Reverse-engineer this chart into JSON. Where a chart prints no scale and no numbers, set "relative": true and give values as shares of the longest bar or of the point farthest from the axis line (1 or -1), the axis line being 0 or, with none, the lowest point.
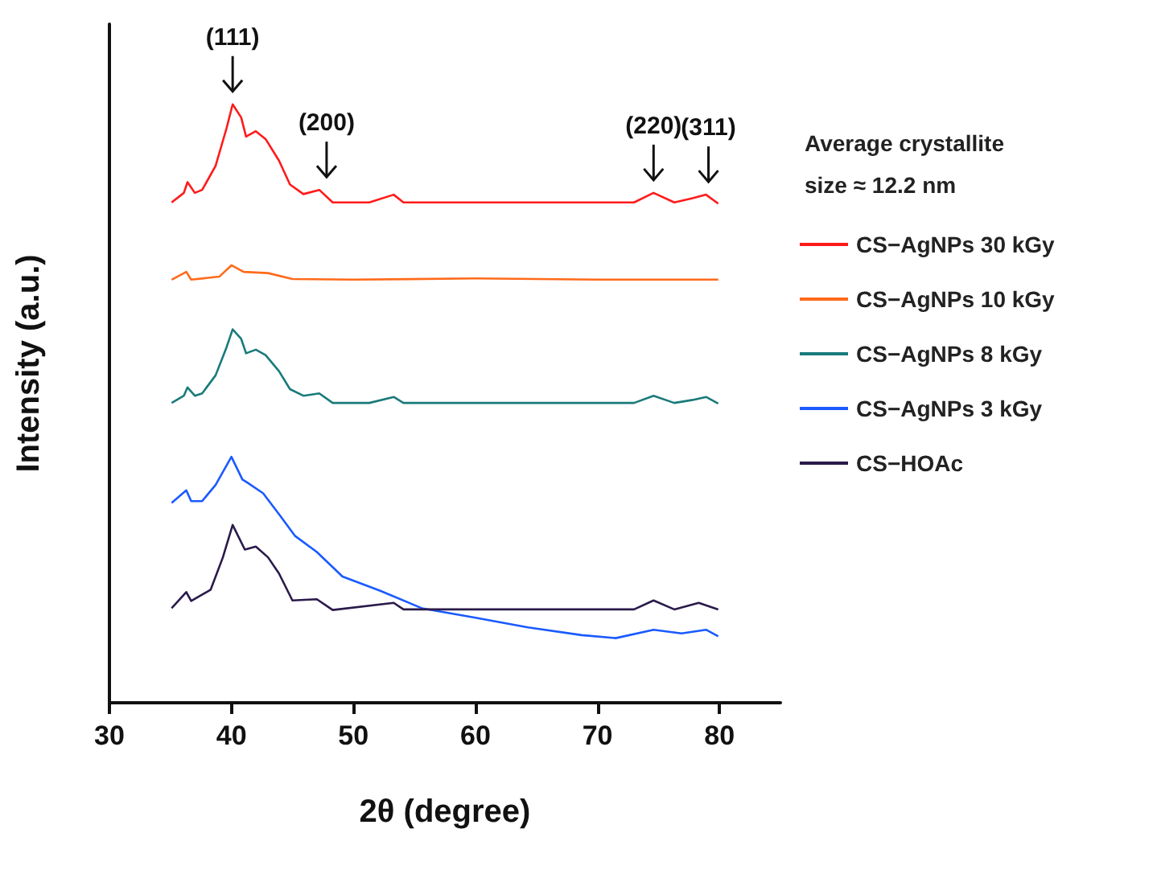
{
  "chart_data": {
    "type": "line",
    "relative": true,
    "xlabel": "2θ (degree)",
    "ylabel": "Intensity (a.u.)",
    "xlim": [
      30,
      85
    ],
    "xticks": [
      30,
      40,
      50,
      60,
      70,
      80
    ],
    "grid": false,
    "legend": "right",
    "marker": "none",
    "line_style": "solid",
    "annotations": [
      {
        "text": "(111)",
        "x": 40.1,
        "y": 1.0
      },
      {
        "text": "(200)",
        "x": 47.8,
        "y": 0.857
      },
      {
        "text": "(220)",
        "x": 74.6,
        "y": 0.852
      },
      {
        "text": "(311)",
        "x": 79.1,
        "y": 0.849
      },
      "Average crystallite size ≈ 12.2 nm"
    ],
    "series": [
      {
        "name": "CS−AgNPs 30 kGy",
        "color": "#ff1a1a",
        "x": [
          35.1,
          36.1,
          36.4,
          37.0,
          37.6,
          38.7,
          39.6,
          40.1,
          40.8,
          41.2,
          42.0,
          42.8,
          43.9,
          44.8,
          45.9,
          47.2,
          48.3,
          51.3,
          53.3,
          54.1,
          73.0,
          74.6,
          76.3,
          77.8,
          78.9,
          79.9
        ],
        "values": [
          0.836,
          0.852,
          0.87,
          0.852,
          0.857,
          0.897,
          0.96,
          1.0,
          0.978,
          0.946,
          0.955,
          0.942,
          0.906,
          0.866,
          0.85,
          0.857,
          0.836,
          0.836,
          0.849,
          0.836,
          0.836,
          0.852,
          0.836,
          0.843,
          0.849,
          0.834
        ]
      },
      {
        "name": "CS−AgNPs 10 kGy",
        "color": "#ff6a1a",
        "x": [
          35.1,
          36.3,
          36.7,
          39.0,
          40.0,
          41.0,
          43.0,
          45.0,
          50.0,
          60.0,
          70.0,
          79.9
        ],
        "values": [
          0.707,
          0.72,
          0.707,
          0.712,
          0.731,
          0.72,
          0.718,
          0.708,
          0.707,
          0.709,
          0.707,
          0.707
        ]
      },
      {
        "name": "CS−AgNPs 8 kGy",
        "color": "#1a7a7a",
        "x": [
          35.1,
          36.1,
          36.4,
          37.0,
          37.6,
          38.7,
          39.6,
          40.1,
          40.8,
          41.2,
          42.0,
          42.8,
          43.9,
          44.8,
          45.9,
          47.2,
          48.3,
          51.3,
          53.3,
          54.1,
          73.0,
          74.6,
          76.3,
          77.8,
          78.9,
          79.9
        ],
        "values": [
          0.501,
          0.513,
          0.527,
          0.513,
          0.517,
          0.547,
          0.594,
          0.624,
          0.608,
          0.584,
          0.59,
          0.581,
          0.554,
          0.524,
          0.513,
          0.517,
          0.501,
          0.501,
          0.511,
          0.501,
          0.501,
          0.513,
          0.501,
          0.506,
          0.511,
          0.5
        ]
      },
      {
        "name": "CS−AgNPs 3 kGy",
        "color": "#1a5aff",
        "x": [
          35.1,
          36.3,
          36.7,
          37.6,
          38.7,
          40.0,
          40.9,
          41.3,
          42.6,
          43.9,
          45.2,
          47.0,
          49.1,
          52.2,
          55.6,
          60.0,
          64.3,
          68.7,
          71.5,
          74.6,
          76.9,
          78.9,
          79.9
        ],
        "values": [
          0.334,
          0.355,
          0.337,
          0.337,
          0.364,
          0.411,
          0.373,
          0.368,
          0.35,
          0.315,
          0.279,
          0.252,
          0.211,
          0.187,
          0.158,
          0.142,
          0.126,
          0.113,
          0.108,
          0.122,
          0.116,
          0.122,
          0.111
        ]
      },
      {
        "name": "CS−HOAc",
        "color": "#2a1a4a",
        "x": [
          35.1,
          36.3,
          36.7,
          38.3,
          39.3,
          40.1,
          41.1,
          42.0,
          43.0,
          43.9,
          45.0,
          47.0,
          48.3,
          53.3,
          54.1,
          73.0,
          74.6,
          76.3,
          78.3,
          79.9
        ],
        "values": [
          0.158,
          0.185,
          0.17,
          0.189,
          0.243,
          0.297,
          0.256,
          0.261,
          0.243,
          0.216,
          0.171,
          0.173,
          0.155,
          0.167,
          0.156,
          0.156,
          0.171,
          0.156,
          0.167,
          0.156
        ]
      }
    ]
  }
}
